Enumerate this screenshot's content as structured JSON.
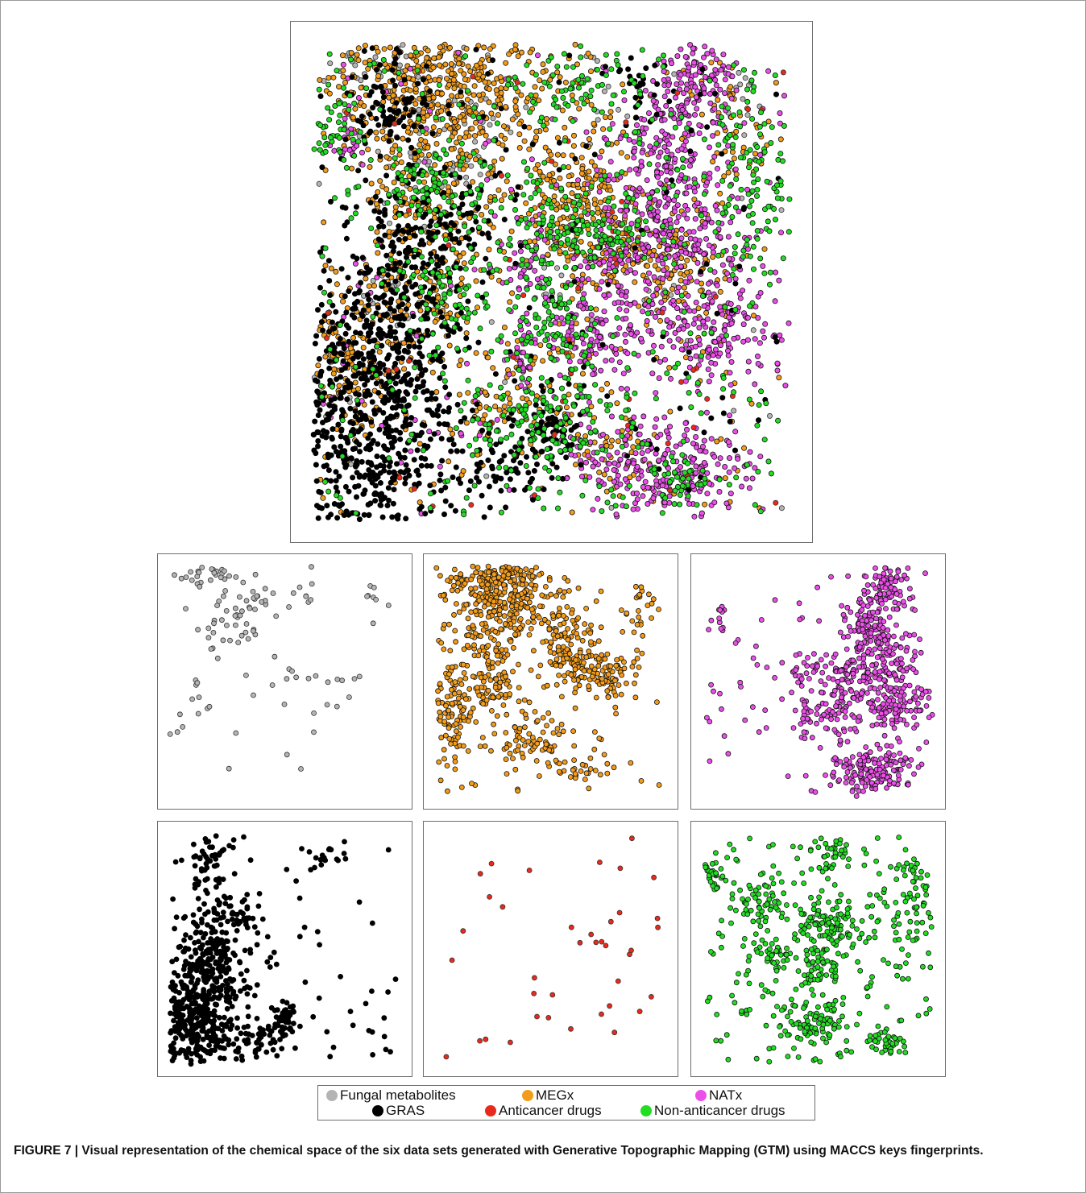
{
  "figure": {
    "caption": "FIGURE 7 | Visual representation of the chemical space of the six data sets generated with Generative Topographic Mapping (GTM) using MACCS keys fingerprints."
  },
  "legend": {
    "items": [
      {
        "label": "Fungal metabolites",
        "color": "#b4b4b4"
      },
      {
        "label": "MEGx",
        "color": "#f39c1a"
      },
      {
        "label": "NATx",
        "color": "#ec4fe9"
      },
      {
        "label": "GRAS",
        "color": "#000000"
      },
      {
        "label": "Anticancer drugs",
        "color": "#e8291b"
      },
      {
        "label": "Non-anticancer drugs",
        "color": "#22dd22"
      }
    ]
  },
  "chart_data": {
    "type": "scatter",
    "description_of_axes": "",
    "panels": [
      {
        "id": "combined",
        "series": [
          "Fungal metabolites",
          "MEGx",
          "NATx",
          "GRAS",
          "Anticancer drugs",
          "Non-anticancer drugs"
        ]
      },
      {
        "id": "fungal",
        "series": [
          "Fungal metabolites"
        ]
      },
      {
        "id": "megx",
        "series": [
          "MEGx"
        ]
      },
      {
        "id": "natx",
        "series": [
          "NATx"
        ]
      },
      {
        "id": "gras",
        "series": [
          "GRAS"
        ]
      },
      {
        "id": "anticancer",
        "series": [
          "Anticancer drugs"
        ]
      },
      {
        "id": "nonanticancer",
        "series": [
          "Non-anticancer drugs"
        ]
      }
    ],
    "series": [
      {
        "name": "Fungal metabolites",
        "color": "#b4b4b4",
        "stroke": "#333333",
        "clusters": [
          [
            0.16,
            0.04,
            0.08,
            0.03,
            50
          ],
          [
            0.33,
            0.17,
            0.06,
            0.05,
            40
          ],
          [
            0.33,
            0.28,
            0.04,
            0.03,
            20
          ],
          [
            0.2,
            0.3,
            0.05,
            0.06,
            20
          ],
          [
            0.6,
            0.1,
            0.04,
            0.08,
            12
          ],
          [
            0.9,
            0.12,
            0.03,
            0.04,
            12
          ],
          [
            0.5,
            0.52,
            0.03,
            0.04,
            10
          ],
          [
            0.15,
            0.55,
            0.04,
            0.05,
            14
          ],
          [
            0.68,
            0.52,
            0.05,
            0.04,
            12
          ],
          [
            0.06,
            0.78,
            0.04,
            0.06,
            8
          ]
        ],
        "scatter": 30
      },
      {
        "name": "MEGx",
        "color": "#f39c1a",
        "stroke": "#111111",
        "clusters": [
          [
            0.3,
            0.08,
            0.12,
            0.08,
            450
          ],
          [
            0.25,
            0.3,
            0.08,
            0.15,
            300
          ],
          [
            0.08,
            0.65,
            0.06,
            0.1,
            160
          ],
          [
            0.55,
            0.3,
            0.06,
            0.07,
            120
          ],
          [
            0.6,
            0.42,
            0.07,
            0.06,
            140
          ],
          [
            0.43,
            0.75,
            0.09,
            0.07,
            120
          ],
          [
            0.75,
            0.47,
            0.06,
            0.06,
            100
          ],
          [
            0.88,
            0.18,
            0.04,
            0.08,
            40
          ],
          [
            0.63,
            0.86,
            0.05,
            0.05,
            40
          ],
          [
            0.25,
            0.55,
            0.06,
            0.05,
            60
          ]
        ],
        "scatter": 150
      },
      {
        "name": "NATx",
        "color": "#ec4fe9",
        "stroke": "#111111",
        "clusters": [
          [
            0.8,
            0.1,
            0.05,
            0.06,
            160
          ],
          [
            0.72,
            0.25,
            0.05,
            0.07,
            160
          ],
          [
            0.77,
            0.42,
            0.08,
            0.07,
            220
          ],
          [
            0.62,
            0.47,
            0.04,
            0.05,
            70
          ],
          [
            0.45,
            0.45,
            0.04,
            0.05,
            50
          ],
          [
            0.58,
            0.62,
            0.05,
            0.06,
            100
          ],
          [
            0.82,
            0.6,
            0.08,
            0.05,
            180
          ],
          [
            0.72,
            0.88,
            0.1,
            0.06,
            260
          ],
          [
            0.44,
            0.65,
            0.02,
            0.05,
            30
          ],
          [
            0.08,
            0.22,
            0.02,
            0.04,
            20
          ]
        ],
        "scatter": 120
      },
      {
        "name": "GRAS",
        "color": "#000000",
        "stroke": "#000000",
        "clusters": [
          [
            0.12,
            0.78,
            0.1,
            0.16,
            800
          ],
          [
            0.2,
            0.5,
            0.06,
            0.1,
            200
          ],
          [
            0.17,
            0.14,
            0.04,
            0.06,
            80
          ],
          [
            0.3,
            0.35,
            0.05,
            0.05,
            60
          ],
          [
            0.5,
            0.8,
            0.03,
            0.04,
            70
          ],
          [
            0.4,
            0.88,
            0.05,
            0.04,
            60
          ],
          [
            0.7,
            0.1,
            0.03,
            0.03,
            25
          ]
        ],
        "scatter": 150
      },
      {
        "name": "Anticancer drugs",
        "color": "#e8291b",
        "stroke": "#333333",
        "clusters": [
          [
            0.65,
            0.44,
            0.05,
            0.04,
            10
          ]
        ],
        "scatter": 55
      },
      {
        "name": "Non-anticancer drugs",
        "color": "#22dd22",
        "stroke": "#111111",
        "clusters": [
          [
            0.55,
            0.4,
            0.08,
            0.05,
            150
          ],
          [
            0.48,
            0.8,
            0.08,
            0.05,
            130
          ],
          [
            0.25,
            0.3,
            0.06,
            0.05,
            80
          ],
          [
            0.92,
            0.3,
            0.05,
            0.12,
            90
          ],
          [
            0.05,
            0.18,
            0.03,
            0.04,
            40
          ],
          [
            0.56,
            0.1,
            0.05,
            0.04,
            50
          ],
          [
            0.78,
            0.9,
            0.04,
            0.03,
            40
          ],
          [
            0.5,
            0.6,
            0.05,
            0.04,
            60
          ],
          [
            0.3,
            0.52,
            0.04,
            0.04,
            50
          ]
        ],
        "scatter": 420
      }
    ]
  }
}
